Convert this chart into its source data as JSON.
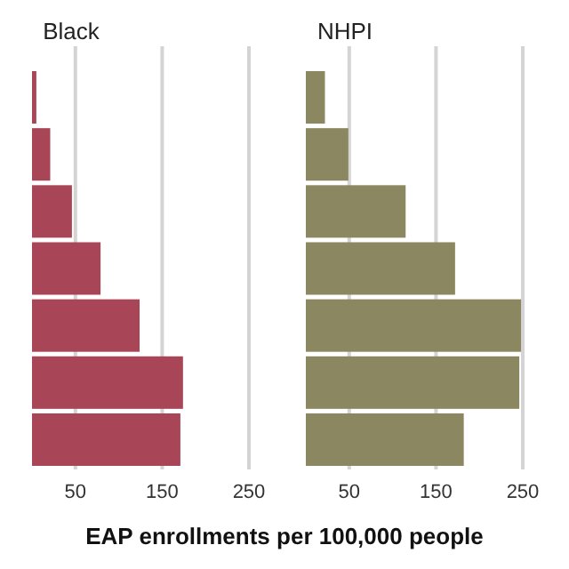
{
  "chart_data": [
    {
      "type": "bar",
      "orientation": "horizontal",
      "title": "Black",
      "xlabel": "EAP enrollments per 100,000 people",
      "categories": [
        null,
        null,
        null,
        null,
        null,
        null,
        null
      ],
      "values": [
        5,
        21,
        46,
        79,
        124,
        174,
        171
      ],
      "color": "#a84657",
      "xlim": [
        0,
        250
      ],
      "xticks": [
        50,
        150,
        250
      ],
      "grid": "x"
    },
    {
      "type": "bar",
      "orientation": "horizontal",
      "title": "NHPI",
      "categories": [
        null,
        null,
        null,
        null,
        null,
        null,
        null
      ],
      "values": [
        22,
        49,
        115,
        172,
        248,
        246,
        182
      ],
      "color": "#8b8760",
      "xlim": [
        0,
        250
      ],
      "xticks": [
        50,
        150,
        250
      ],
      "grid": "x"
    }
  ]
}
